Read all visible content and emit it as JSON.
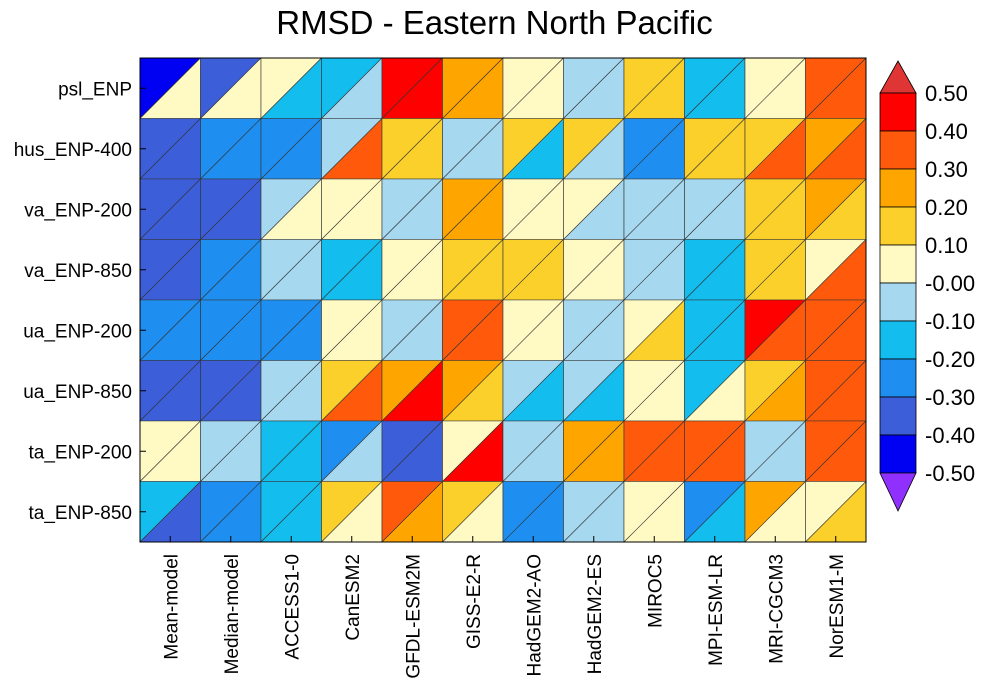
{
  "chart_data": {
    "type": "heatmap",
    "title": "RMSD - Eastern North Pacific",
    "encoding": "split-cell triangles: upper-left and lower-right halves show two values per cell",
    "rows": [
      "psl_ENP",
      "hus_ENP-400",
      "va_ENP-200",
      "va_ENP-850",
      "ua_ENP-200",
      "ua_ENP-850",
      "ta_ENP-200",
      "ta_ENP-850"
    ],
    "columns": [
      "Mean-model",
      "Median-model",
      "ACCESS1-0",
      "CanESM2",
      "GFDL-ESM2M",
      "GISS-E2-R",
      "HadGEM2-AO",
      "HadGEM2-ES",
      "MIROC5",
      "MPI-ESM-LR",
      "MRI-CGCM3",
      "NorESM1-M"
    ],
    "upper_values": [
      [
        -0.45,
        -0.35,
        0.05,
        -0.15,
        0.45,
        0.25,
        0.05,
        -0.05,
        0.15,
        -0.15,
        0.05,
        0.35
      ],
      [
        -0.35,
        -0.25,
        -0.25,
        -0.05,
        0.15,
        -0.05,
        0.15,
        0.15,
        -0.25,
        0.15,
        0.15,
        0.25
      ],
      [
        -0.35,
        -0.35,
        -0.05,
        0.05,
        -0.05,
        0.25,
        0.05,
        0.05,
        -0.05,
        -0.05,
        0.15,
        0.25
      ],
      [
        -0.35,
        -0.25,
        -0.05,
        -0.15,
        0.05,
        0.15,
        0.15,
        0.05,
        -0.05,
        -0.15,
        0.15,
        0.05
      ],
      [
        -0.25,
        -0.25,
        -0.25,
        0.05,
        -0.05,
        0.35,
        0.05,
        -0.05,
        0.05,
        -0.15,
        0.45,
        0.35
      ],
      [
        -0.35,
        -0.35,
        -0.05,
        0.15,
        0.25,
        0.25,
        -0.05,
        -0.05,
        0.05,
        -0.15,
        0.15,
        0.35
      ],
      [
        0.05,
        -0.05,
        -0.15,
        -0.25,
        -0.35,
        0.05,
        -0.05,
        0.25,
        0.35,
        0.35,
        -0.05,
        0.35
      ],
      [
        -0.15,
        -0.25,
        -0.15,
        0.15,
        0.35,
        0.15,
        -0.25,
        -0.05,
        0.05,
        -0.25,
        0.25,
        0.05
      ]
    ],
    "lower_values": [
      [
        0.05,
        0.05,
        -0.15,
        -0.05,
        0.45,
        0.25,
        0.05,
        -0.05,
        0.15,
        -0.15,
        0.05,
        0.35
      ],
      [
        -0.35,
        -0.25,
        -0.25,
        0.35,
        0.15,
        -0.05,
        -0.15,
        -0.05,
        -0.25,
        0.15,
        0.35,
        0.35
      ],
      [
        -0.35,
        -0.35,
        0.05,
        0.05,
        -0.05,
        0.25,
        0.05,
        -0.05,
        -0.05,
        -0.05,
        0.15,
        0.15
      ],
      [
        -0.35,
        -0.25,
        -0.05,
        -0.15,
        0.05,
        0.15,
        0.15,
        0.05,
        -0.05,
        -0.15,
        0.15,
        0.35
      ],
      [
        -0.25,
        -0.25,
        -0.25,
        0.05,
        -0.05,
        0.35,
        0.05,
        -0.05,
        0.15,
        -0.15,
        0.35,
        0.35
      ],
      [
        -0.35,
        -0.35,
        -0.05,
        0.35,
        0.45,
        0.15,
        -0.15,
        -0.15,
        0.05,
        0.05,
        0.25,
        0.35
      ],
      [
        0.05,
        -0.05,
        -0.15,
        -0.05,
        -0.35,
        0.45,
        -0.05,
        0.25,
        0.35,
        0.35,
        -0.05,
        0.35
      ],
      [
        -0.35,
        -0.25,
        -0.15,
        0.05,
        0.25,
        0.05,
        -0.25,
        -0.05,
        0.05,
        -0.15,
        0.05,
        0.15
      ]
    ],
    "colorbar": {
      "ticks": [
        "0.50",
        "0.40",
        "0.30",
        "0.20",
        "0.10",
        "-0.00",
        "-0.10",
        "-0.20",
        "-0.30",
        "-0.40",
        "-0.50"
      ],
      "bins": [
        {
          "min": 0.4,
          "max": 0.5,
          "color": "#ff0000"
        },
        {
          "min": 0.3,
          "max": 0.4,
          "color": "#ff5a0c"
        },
        {
          "min": 0.2,
          "max": 0.3,
          "color": "#ffa500"
        },
        {
          "min": 0.1,
          "max": 0.2,
          "color": "#fbd02b"
        },
        {
          "min": 0.0,
          "max": 0.1,
          "color": "#fffac4"
        },
        {
          "min": -0.1,
          "max": 0.0,
          "color": "#a6d8f0"
        },
        {
          "min": -0.2,
          "max": -0.1,
          "color": "#13bdee"
        },
        {
          "min": -0.3,
          "max": -0.2,
          "color": "#1e8ff0"
        },
        {
          "min": -0.4,
          "max": -0.3,
          "color": "#3c5ed9"
        },
        {
          "min": -0.5,
          "max": -0.4,
          "color": "#0000f2"
        }
      ],
      "over_color": "#e03535",
      "under_color": "#9030ff"
    }
  }
}
